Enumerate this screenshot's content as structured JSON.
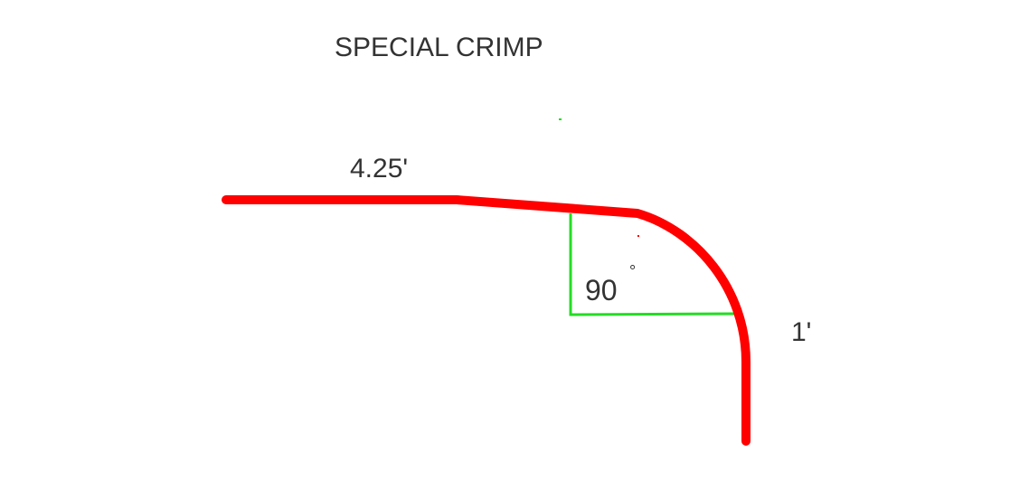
{
  "diagram": {
    "title": "SPECIAL CRIMP",
    "length_label": "4.25'",
    "angle_label": "90",
    "angle_unit": "°",
    "radius_label": "1'",
    "colors": {
      "profile": "#ff0000",
      "angle_guides": "#22dd22",
      "text": "#333333",
      "background": "#ffffff"
    }
  }
}
